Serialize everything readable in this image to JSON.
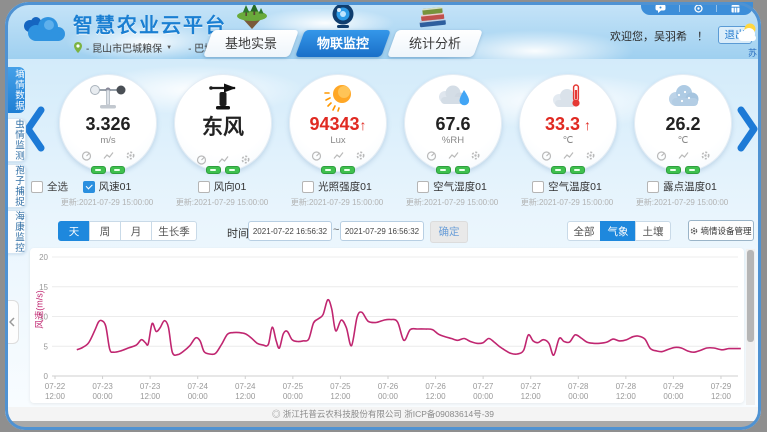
{
  "header": {
    "app_title": "智慧农业云平台",
    "location_primary": "- 昆山市巴城粮保",
    "location_secondary": "- 巴城监测",
    "tabs": [
      {
        "label": "基地实景"
      },
      {
        "label": "物联监控"
      },
      {
        "label": "统计分析"
      }
    ],
    "welcome": "欢迎您，吴羽希",
    "exclaim": "！",
    "logout": "退出",
    "weather_region": "苏"
  },
  "sidebar": {
    "items": [
      {
        "label": "墒情数据"
      },
      {
        "label": "虫情监测"
      },
      {
        "label": "孢子捕捉"
      },
      {
        "label": "海康监控"
      }
    ]
  },
  "sensors": {
    "select_all": "全选",
    "cards": [
      {
        "icon": "anemometer-icon",
        "value": "3.326",
        "arrow": "",
        "unit": "m/s",
        "name": "风速01",
        "updated": "更新:2021-07-29 15:00:00"
      },
      {
        "icon": "wind-vane-icon",
        "value": "东风",
        "arrow": "",
        "unit": "",
        "name": "风向01",
        "updated": "更新:2021-07-29 15:00:00"
      },
      {
        "icon": "sun-icon",
        "value": "94343",
        "arrow": "↑",
        "unit": "Lux",
        "name": "光照强度01",
        "updated": "更新:2021-07-29 15:00:00"
      },
      {
        "icon": "humidity-cloud-icon",
        "value": "67.6",
        "arrow": "",
        "unit": "%RH",
        "name": "空气湿度01",
        "updated": "更新:2021-07-29 15:00:00"
      },
      {
        "icon": "cloud-thermometer-icon",
        "value": "33.3",
        "arrow": " ↑",
        "unit": "℃",
        "name": "空气温度01",
        "updated": "更新:2021-07-29 15:00:00"
      },
      {
        "icon": "dew-cloud-icon",
        "value": "26.2",
        "arrow": "",
        "unit": "℃",
        "name": "露点温度01",
        "updated": "更新:2021-07-29 15:00:00"
      }
    ]
  },
  "controls": {
    "periods": [
      "天",
      "周",
      "月",
      "生长季"
    ],
    "active_period": "天",
    "time_label": "时间:",
    "time_from": "2021-07-22 16:56:32",
    "time_separator": "~",
    "time_to": "2021-07-29 16:56:32",
    "confirm": "确定",
    "categories": [
      "全部",
      "气象",
      "土壤"
    ],
    "active_category": "气象",
    "device_manage": "墒情设备管理"
  },
  "chart_data": {
    "type": "line",
    "title": "",
    "ylabel": "风速(m/s)",
    "xlabel": "",
    "ylim": [
      0,
      20
    ],
    "yticks": [
      0,
      5,
      10,
      15,
      20
    ],
    "grid": true,
    "legend": "none",
    "line_color": "#c02670",
    "x_unit": "hours since 2021-07-22 12:00",
    "xticks": [
      {
        "t": 0,
        "date": "07-22",
        "time": "12:00"
      },
      {
        "t": 12,
        "date": "07-23",
        "time": "00:00"
      },
      {
        "t": 24,
        "date": "07-23",
        "time": "12:00"
      },
      {
        "t": 36,
        "date": "07-24",
        "time": "00:00"
      },
      {
        "t": 48,
        "date": "07-24",
        "time": "12:00"
      },
      {
        "t": 60,
        "date": "07-25",
        "time": "00:00"
      },
      {
        "t": 72,
        "date": "07-25",
        "time": "12:00"
      },
      {
        "t": 84,
        "date": "07-26",
        "time": "00:00"
      },
      {
        "t": 96,
        "date": "07-26",
        "time": "12:00"
      },
      {
        "t": 108,
        "date": "07-27",
        "time": "00:00"
      },
      {
        "t": 120,
        "date": "07-27",
        "time": "12:00"
      },
      {
        "t": 132,
        "date": "07-28",
        "time": "00:00"
      },
      {
        "t": 144,
        "date": "07-28",
        "time": "12:00"
      },
      {
        "t": 156,
        "date": "07-29",
        "time": "00:00"
      },
      {
        "t": 168,
        "date": "07-29",
        "time": "12:00"
      }
    ],
    "series": [
      {
        "name": "风速01",
        "points": [
          [
            5.5,
            4.4
          ],
          [
            7,
            4.8
          ],
          [
            8.5,
            5.6
          ],
          [
            10,
            7.6
          ],
          [
            11,
            9.1
          ],
          [
            11.8,
            9.3
          ],
          [
            12.8,
            8.4
          ],
          [
            13.8,
            4.5
          ],
          [
            14.8,
            4.0
          ],
          [
            16.5,
            4.2
          ],
          [
            18.5,
            4.7
          ],
          [
            20.5,
            5.2
          ],
          [
            21.8,
            6.1
          ],
          [
            22.8,
            5.6
          ],
          [
            23.5,
            5.4
          ],
          [
            24.5,
            8.8
          ],
          [
            25.5,
            7.5
          ],
          [
            26.5,
            8.1
          ],
          [
            27.6,
            9.3
          ],
          [
            28.6,
            8.2
          ],
          [
            29.6,
            4.0
          ],
          [
            31,
            3.6
          ],
          [
            32.5,
            4.2
          ],
          [
            34,
            5.1
          ],
          [
            35.5,
            6.4
          ],
          [
            36.6,
            5.9
          ],
          [
            37.6,
            4.1
          ],
          [
            39,
            3.7
          ],
          [
            40.5,
            3.8
          ],
          [
            42,
            5.3
          ],
          [
            43.5,
            7.0
          ],
          [
            45,
            7.3
          ],
          [
            46.5,
            7.3
          ],
          [
            48,
            7.1
          ],
          [
            49.5,
            6.4
          ],
          [
            51,
            5.5
          ],
          [
            52.5,
            5.2
          ],
          [
            53.8,
            5.3
          ],
          [
            54.8,
            8.2
          ],
          [
            55.8,
            5.9
          ],
          [
            56.6,
            4.7
          ],
          [
            57.6,
            7.1
          ],
          [
            58.6,
            7.5
          ],
          [
            59.8,
            6.1
          ],
          [
            61.2,
            5.8
          ],
          [
            62.6,
            5.9
          ],
          [
            64,
            6.2
          ],
          [
            65.2,
            8.9
          ],
          [
            66.4,
            9.6
          ],
          [
            67.6,
            10.3
          ],
          [
            68.8,
            12.8
          ],
          [
            69.8,
            11.3
          ],
          [
            70.8,
            7.6
          ],
          [
            72.2,
            9.4
          ],
          [
            73.5,
            8.1
          ],
          [
            74.8,
            5.1
          ],
          [
            76.2,
            9.9
          ],
          [
            77.4,
            10.7
          ],
          [
            79,
            9.2
          ],
          [
            81,
            9.0
          ],
          [
            83,
            9.4
          ],
          [
            84.6,
            9.5
          ],
          [
            86.4,
            9.1
          ],
          [
            88,
            6.0
          ],
          [
            89.6,
            7.8
          ],
          [
            91.4,
            7.9
          ],
          [
            93.4,
            7.9
          ],
          [
            95.2,
            7.8
          ],
          [
            96.8,
            7.0
          ],
          [
            98.4,
            6.6
          ],
          [
            100,
            6.3
          ],
          [
            101.6,
            6.0
          ],
          [
            103.2,
            6.3
          ],
          [
            104.8,
            5.8
          ],
          [
            106.4,
            5.5
          ],
          [
            108,
            5.6
          ],
          [
            109.4,
            6.3
          ],
          [
            110.8,
            5.7
          ],
          [
            112.2,
            4.9
          ],
          [
            113.6,
            4.3
          ],
          [
            115,
            3.8
          ],
          [
            116.6,
            3.7
          ],
          [
            118.2,
            4.3
          ],
          [
            119.4,
            6.9
          ],
          [
            120.6,
            5.9
          ],
          [
            121.8,
            5.6
          ],
          [
            123.2,
            6.1
          ],
          [
            124.6,
            5.5
          ],
          [
            125.8,
            3.5
          ],
          [
            127.2,
            6.3
          ],
          [
            128.4,
            5.8
          ],
          [
            129.8,
            5.7
          ],
          [
            131.2,
            6.9
          ],
          [
            132.7,
            6.4
          ],
          [
            134.2,
            5.7
          ],
          [
            135.8,
            5.5
          ],
          [
            137.4,
            5.5
          ],
          [
            139.2,
            5.7
          ],
          [
            140.8,
            6.2
          ],
          [
            142.4,
            5.9
          ],
          [
            144.2,
            6.1
          ],
          [
            145.8,
            6.6
          ],
          [
            147.2,
            6.7
          ],
          [
            148.8,
            6.2
          ],
          [
            150.2,
            4.6
          ],
          [
            151.8,
            4.2
          ],
          [
            153.2,
            4.1
          ],
          [
            154.8,
            4.5
          ],
          [
            156.4,
            4.8
          ],
          [
            158,
            4.7
          ],
          [
            159.6,
            4.2
          ],
          [
            161.2,
            4.0
          ],
          [
            162.8,
            4.3
          ],
          [
            164.4,
            4.7
          ],
          [
            166.2,
            4.7
          ],
          [
            168.2,
            4.4
          ],
          [
            170,
            4.6
          ],
          [
            171.8,
            4.6
          ],
          [
            173,
            4.6
          ]
        ]
      }
    ]
  },
  "footer": {
    "text": "◎ 浙江托普云农科技股份有限公司 浙ICP备09083614号-39"
  }
}
